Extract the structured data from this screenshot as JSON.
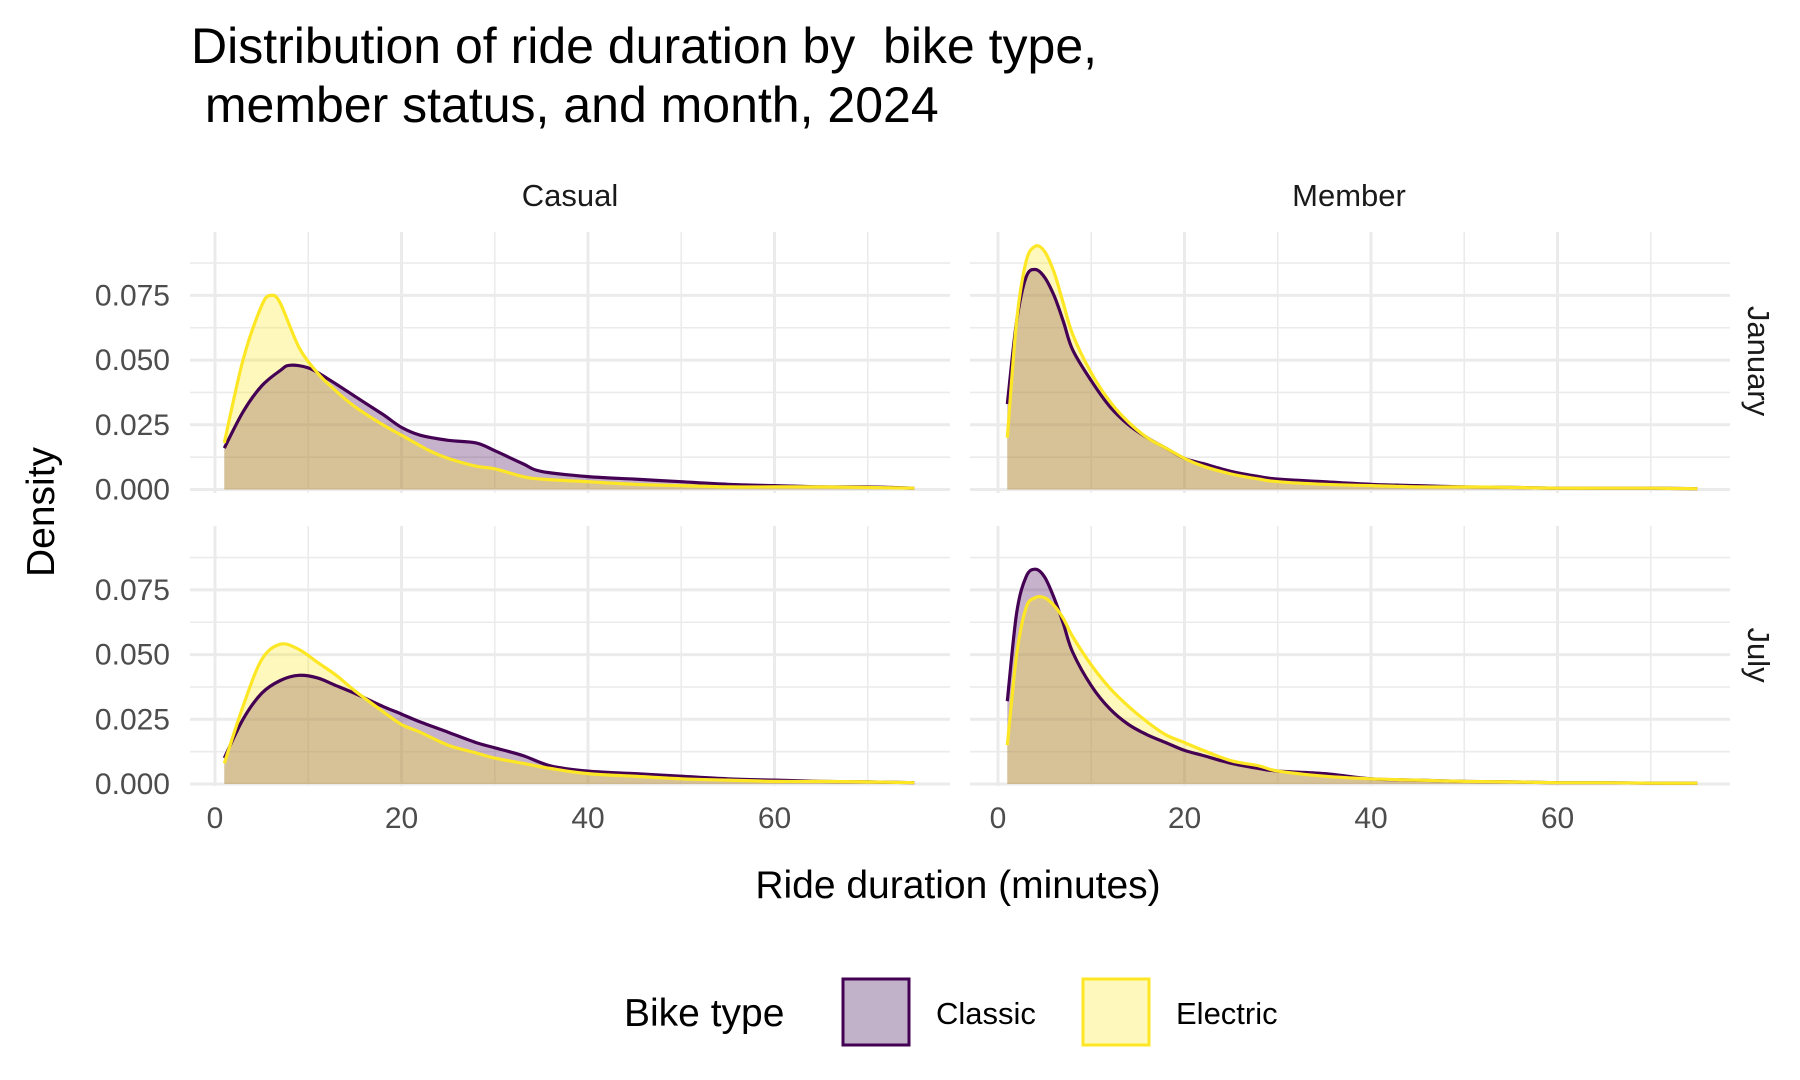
{
  "chart_data": {
    "type": "area",
    "subtype": "density-faceted",
    "title_lines": [
      "Distribution of ride duration by  bike type,",
      " member status, and month, 2024"
    ],
    "xlabel": "Ride duration (minutes)",
    "ylabel": "Density",
    "xlim": [
      0,
      75
    ],
    "ylim": [
      0,
      0.098
    ],
    "x_ticks": [
      0,
      20,
      40,
      60
    ],
    "y_ticks": [
      0,
      0.025,
      0.05,
      0.075
    ],
    "x_tick_labels": [
      "0",
      "20",
      "40",
      "60"
    ],
    "y_tick_labels": [
      "0.000",
      "0.025",
      "0.050",
      "0.075"
    ],
    "grid": true,
    "col_facets": [
      "Casual",
      "Member"
    ],
    "row_facets": [
      "January",
      "July"
    ],
    "legend": {
      "title": "Bike type",
      "position": "bottom",
      "entries": [
        {
          "label": "Classic",
          "color": "#440154",
          "fill": "#c2b2c9"
        },
        {
          "label": "Electric",
          "color": "#fde725",
          "fill": "#fef8bc"
        }
      ]
    },
    "series": [
      {
        "name": "Classic",
        "color": "#440154",
        "facets": [
          {
            "col": "Casual",
            "row": "January",
            "x": [
              1,
              3,
              5,
              7,
              8,
              10,
              12,
              15,
              18,
              20,
              22,
              25,
              28,
              30,
              33,
              35,
              40,
              45,
              50,
              55,
              60,
              65,
              70,
              75
            ],
            "y": [
              0.016,
              0.03,
              0.04,
              0.046,
              0.048,
              0.047,
              0.043,
              0.036,
              0.029,
              0.024,
              0.021,
              0.019,
              0.018,
              0.015,
              0.01,
              0.007,
              0.005,
              0.004,
              0.003,
              0.002,
              0.0015,
              0.001,
              0.001,
              0.0005
            ]
          },
          {
            "col": "Member",
            "row": "January",
            "x": [
              1,
              2,
              3,
              4,
              5,
              6,
              7,
              8,
              10,
              12,
              14,
              16,
              18,
              20,
              22,
              25,
              28,
              30,
              35,
              40,
              45,
              50,
              55,
              60,
              65,
              70,
              75
            ],
            "y": [
              0.033,
              0.065,
              0.082,
              0.085,
              0.082,
              0.075,
              0.065,
              0.054,
              0.042,
              0.032,
              0.025,
              0.02,
              0.016,
              0.012,
              0.01,
              0.007,
              0.005,
              0.004,
              0.003,
              0.002,
              0.0015,
              0.001,
              0.0008,
              0.0005,
              0.0005,
              0.0005,
              0.0003
            ]
          },
          {
            "col": "Casual",
            "row": "July",
            "x": [
              1,
              3,
              5,
              7,
              9,
              11,
              13,
              15,
              18,
              20,
              22,
              25,
              28,
              30,
              33,
              36,
              40,
              45,
              50,
              55,
              60,
              65,
              70,
              75
            ],
            "y": [
              0.01,
              0.025,
              0.035,
              0.04,
              0.042,
              0.041,
              0.038,
              0.035,
              0.03,
              0.027,
              0.024,
              0.02,
              0.016,
              0.014,
              0.011,
              0.007,
              0.005,
              0.004,
              0.003,
              0.002,
              0.0015,
              0.001,
              0.0008,
              0.0005
            ]
          },
          {
            "col": "Member",
            "row": "July",
            "x": [
              1,
              2,
              3,
              4,
              5,
              6,
              7,
              8,
              10,
              12,
              14,
              16,
              18,
              20,
              22,
              25,
              28,
              30,
              35,
              40,
              45,
              50,
              55,
              60,
              65,
              70,
              75
            ],
            "y": [
              0.032,
              0.066,
              0.08,
              0.083,
              0.08,
              0.072,
              0.062,
              0.051,
              0.038,
              0.029,
              0.023,
              0.019,
              0.016,
              0.013,
              0.011,
              0.008,
              0.006,
              0.005,
              0.004,
              0.002,
              0.0015,
              0.001,
              0.0008,
              0.0005,
              0.0005,
              0.0003,
              0.0003
            ]
          }
        ]
      },
      {
        "name": "Electric",
        "color": "#fde725",
        "facets": [
          {
            "col": "Casual",
            "row": "January",
            "x": [
              1,
              3,
              5,
              6,
              7,
              9,
              11,
              13,
              15,
              18,
              20,
              23,
              25,
              28,
              30,
              33,
              35,
              40,
              45,
              50,
              55,
              60,
              65,
              70,
              75
            ],
            "y": [
              0.018,
              0.05,
              0.071,
              0.075,
              0.072,
              0.055,
              0.045,
              0.038,
              0.032,
              0.025,
              0.021,
              0.015,
              0.012,
              0.009,
              0.008,
              0.005,
              0.004,
              0.003,
              0.002,
              0.0015,
              0.001,
              0.001,
              0.001,
              0.0008,
              0.0005
            ]
          },
          {
            "col": "Member",
            "row": "January",
            "x": [
              1,
              2,
              3,
              4,
              5,
              6,
              7,
              8,
              10,
              12,
              14,
              16,
              18,
              20,
              22,
              25,
              28,
              30,
              35,
              40,
              45,
              50,
              55,
              60,
              65,
              70,
              75
            ],
            "y": [
              0.02,
              0.065,
              0.088,
              0.094,
              0.092,
              0.084,
              0.072,
              0.06,
              0.045,
              0.034,
              0.026,
              0.02,
              0.016,
              0.012,
              0.009,
              0.006,
              0.004,
              0.003,
              0.002,
              0.0015,
              0.001,
              0.001,
              0.0008,
              0.0005,
              0.0005,
              0.0005,
              0.0003
            ]
          },
          {
            "col": "Casual",
            "row": "July",
            "x": [
              1,
              3,
              5,
              7,
              9,
              11,
              13,
              15,
              18,
              20,
              22,
              25,
              28,
              30,
              33,
              36,
              40,
              45,
              50,
              55,
              60,
              65,
              70,
              75
            ],
            "y": [
              0.008,
              0.03,
              0.048,
              0.054,
              0.052,
              0.047,
              0.042,
              0.036,
              0.028,
              0.023,
              0.02,
              0.015,
              0.012,
              0.01,
              0.008,
              0.006,
              0.004,
              0.003,
              0.002,
              0.0015,
              0.001,
              0.001,
              0.0008,
              0.0005
            ]
          },
          {
            "col": "Member",
            "row": "July",
            "x": [
              1,
              2,
              3,
              4,
              5,
              6,
              7,
              8,
              10,
              12,
              14,
              16,
              18,
              20,
              22,
              25,
              28,
              30,
              35,
              40,
              45,
              50,
              55,
              60,
              65,
              70,
              75
            ],
            "y": [
              0.015,
              0.05,
              0.068,
              0.072,
              0.072,
              0.069,
              0.064,
              0.057,
              0.046,
              0.037,
              0.03,
              0.024,
              0.019,
              0.016,
              0.013,
              0.009,
              0.007,
              0.005,
              0.003,
              0.002,
              0.0015,
              0.001,
              0.0008,
              0.0005,
              0.0005,
              0.0003,
              0.0003
            ]
          }
        ]
      }
    ]
  }
}
